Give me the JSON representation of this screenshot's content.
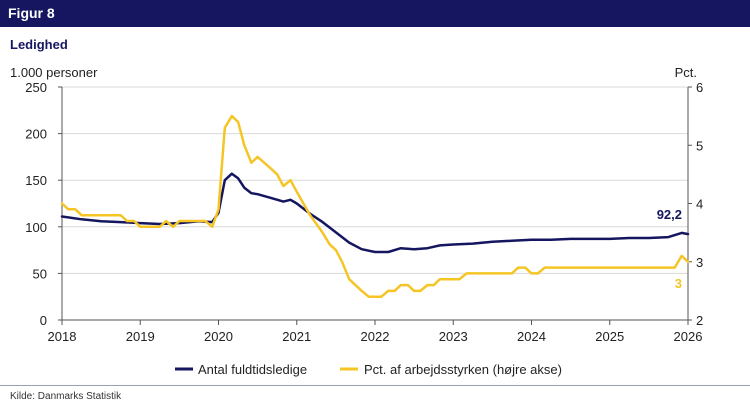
{
  "header": {
    "figure_label": "Figur 8"
  },
  "footer": {
    "source": "Kilde: Danmarks Statistik"
  },
  "colors": {
    "header_bg": "#15165f",
    "series_navy": "#15165f",
    "series_yellow": "#f5c526"
  },
  "chart_data": {
    "type": "line",
    "title": "Ledighed",
    "ylabel_left": "1.000 personer",
    "ylabel_right": "Pct.",
    "y_left_range": [
      0,
      250
    ],
    "y_right_range": [
      2,
      6
    ],
    "y_left_ticks": [
      "0",
      "50",
      "100",
      "150",
      "200",
      "250"
    ],
    "y_right_ticks": [
      "2",
      "3",
      "4",
      "5",
      "6"
    ],
    "x_range": [
      2018,
      2026
    ],
    "x_ticks": [
      "2018",
      "2019",
      "2020",
      "2021",
      "2022",
      "2023",
      "2024",
      "2025",
      "2026"
    ],
    "grid": "horizontal",
    "legend_position": "bottom",
    "series": [
      {
        "name": "Antal fuldtidsledige",
        "axis": "left",
        "color": "#15165f",
        "end_label": "92,2",
        "points": [
          [
            2018.0,
            111
          ],
          [
            2018.25,
            108
          ],
          [
            2018.5,
            106
          ],
          [
            2018.75,
            105
          ],
          [
            2019.0,
            104
          ],
          [
            2019.25,
            103
          ],
          [
            2019.5,
            104
          ],
          [
            2019.75,
            106
          ],
          [
            2019.92,
            105
          ],
          [
            2020.0,
            115
          ],
          [
            2020.08,
            150
          ],
          [
            2020.17,
            157
          ],
          [
            2020.25,
            152
          ],
          [
            2020.33,
            142
          ],
          [
            2020.42,
            136
          ],
          [
            2020.5,
            135
          ],
          [
            2020.67,
            131
          ],
          [
            2020.83,
            127
          ],
          [
            2020.92,
            129
          ],
          [
            2021.0,
            125
          ],
          [
            2021.17,
            114
          ],
          [
            2021.33,
            105
          ],
          [
            2021.5,
            94
          ],
          [
            2021.67,
            83
          ],
          [
            2021.83,
            76
          ],
          [
            2022.0,
            73
          ],
          [
            2022.17,
            73
          ],
          [
            2022.33,
            77
          ],
          [
            2022.5,
            76
          ],
          [
            2022.67,
            77
          ],
          [
            2022.83,
            80
          ],
          [
            2023.0,
            81
          ],
          [
            2023.25,
            82
          ],
          [
            2023.5,
            84
          ],
          [
            2023.75,
            85
          ],
          [
            2024.0,
            86
          ],
          [
            2024.25,
            86
          ],
          [
            2024.5,
            87
          ],
          [
            2024.75,
            87
          ],
          [
            2025.0,
            87
          ],
          [
            2025.25,
            88
          ],
          [
            2025.5,
            88
          ],
          [
            2025.75,
            89
          ],
          [
            2025.92,
            93.5
          ],
          [
            2026.0,
            92.2
          ]
        ]
      },
      {
        "name": "Pct. af arbejdsstyrken (højre akse)",
        "axis": "right",
        "color": "#f5c526",
        "end_label": "3",
        "points": [
          [
            2018.0,
            4.0
          ],
          [
            2018.08,
            3.9
          ],
          [
            2018.17,
            3.9
          ],
          [
            2018.25,
            3.8
          ],
          [
            2018.5,
            3.8
          ],
          [
            2018.75,
            3.8
          ],
          [
            2018.83,
            3.7
          ],
          [
            2018.92,
            3.7
          ],
          [
            2019.0,
            3.6
          ],
          [
            2019.25,
            3.6
          ],
          [
            2019.33,
            3.7
          ],
          [
            2019.42,
            3.6
          ],
          [
            2019.5,
            3.7
          ],
          [
            2019.75,
            3.7
          ],
          [
            2019.83,
            3.7
          ],
          [
            2019.92,
            3.6
          ],
          [
            2020.0,
            3.9
          ],
          [
            2020.08,
            5.3
          ],
          [
            2020.17,
            5.5
          ],
          [
            2020.25,
            5.4
          ],
          [
            2020.33,
            5.0
          ],
          [
            2020.42,
            4.7
          ],
          [
            2020.5,
            4.8
          ],
          [
            2020.67,
            4.6
          ],
          [
            2020.75,
            4.5
          ],
          [
            2020.83,
            4.3
          ],
          [
            2020.92,
            4.4
          ],
          [
            2021.0,
            4.2
          ],
          [
            2021.17,
            3.8
          ],
          [
            2021.33,
            3.5
          ],
          [
            2021.42,
            3.3
          ],
          [
            2021.5,
            3.2
          ],
          [
            2021.58,
            3.0
          ],
          [
            2021.67,
            2.7
          ],
          [
            2021.83,
            2.5
          ],
          [
            2021.92,
            2.4
          ],
          [
            2022.0,
            2.4
          ],
          [
            2022.08,
            2.4
          ],
          [
            2022.17,
            2.5
          ],
          [
            2022.25,
            2.5
          ],
          [
            2022.33,
            2.6
          ],
          [
            2022.42,
            2.6
          ],
          [
            2022.5,
            2.5
          ],
          [
            2022.58,
            2.5
          ],
          [
            2022.67,
            2.6
          ],
          [
            2022.75,
            2.6
          ],
          [
            2022.83,
            2.7
          ],
          [
            2023.0,
            2.7
          ],
          [
            2023.08,
            2.7
          ],
          [
            2023.17,
            2.8
          ],
          [
            2023.75,
            2.8
          ],
          [
            2023.83,
            2.9
          ],
          [
            2023.92,
            2.9
          ],
          [
            2024.0,
            2.8
          ],
          [
            2024.08,
            2.8
          ],
          [
            2024.17,
            2.9
          ],
          [
            2025.83,
            2.9
          ],
          [
            2025.92,
            3.1
          ],
          [
            2026.0,
            3.0
          ]
        ]
      }
    ]
  }
}
